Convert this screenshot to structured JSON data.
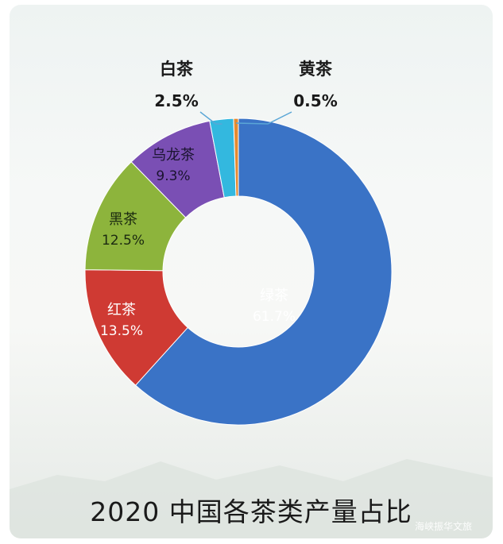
{
  "chart_data": {
    "type": "pie",
    "title": "2020  中国各茶类产量占比",
    "slices": [
      {
        "name": "绿茶",
        "value": 61.7,
        "label": "61.7%",
        "color": "#3a73c6"
      },
      {
        "name": "红茶",
        "value": 13.5,
        "label": "13.5%",
        "color": "#cf3a33"
      },
      {
        "name": "黑茶",
        "value": 12.5,
        "label": "12.5%",
        "color": "#8db43c"
      },
      {
        "name": "乌龙茶",
        "value": 9.3,
        "label": "9.3%",
        "color": "#7a4fb4"
      },
      {
        "name": "白茶",
        "value": 2.5,
        "label": "2.5%",
        "color": "#33b8df"
      },
      {
        "name": "黄茶",
        "value": 0.5,
        "label": "0.5%",
        "color": "#e58a30"
      }
    ]
  },
  "watermark": "海峡振华文旅"
}
